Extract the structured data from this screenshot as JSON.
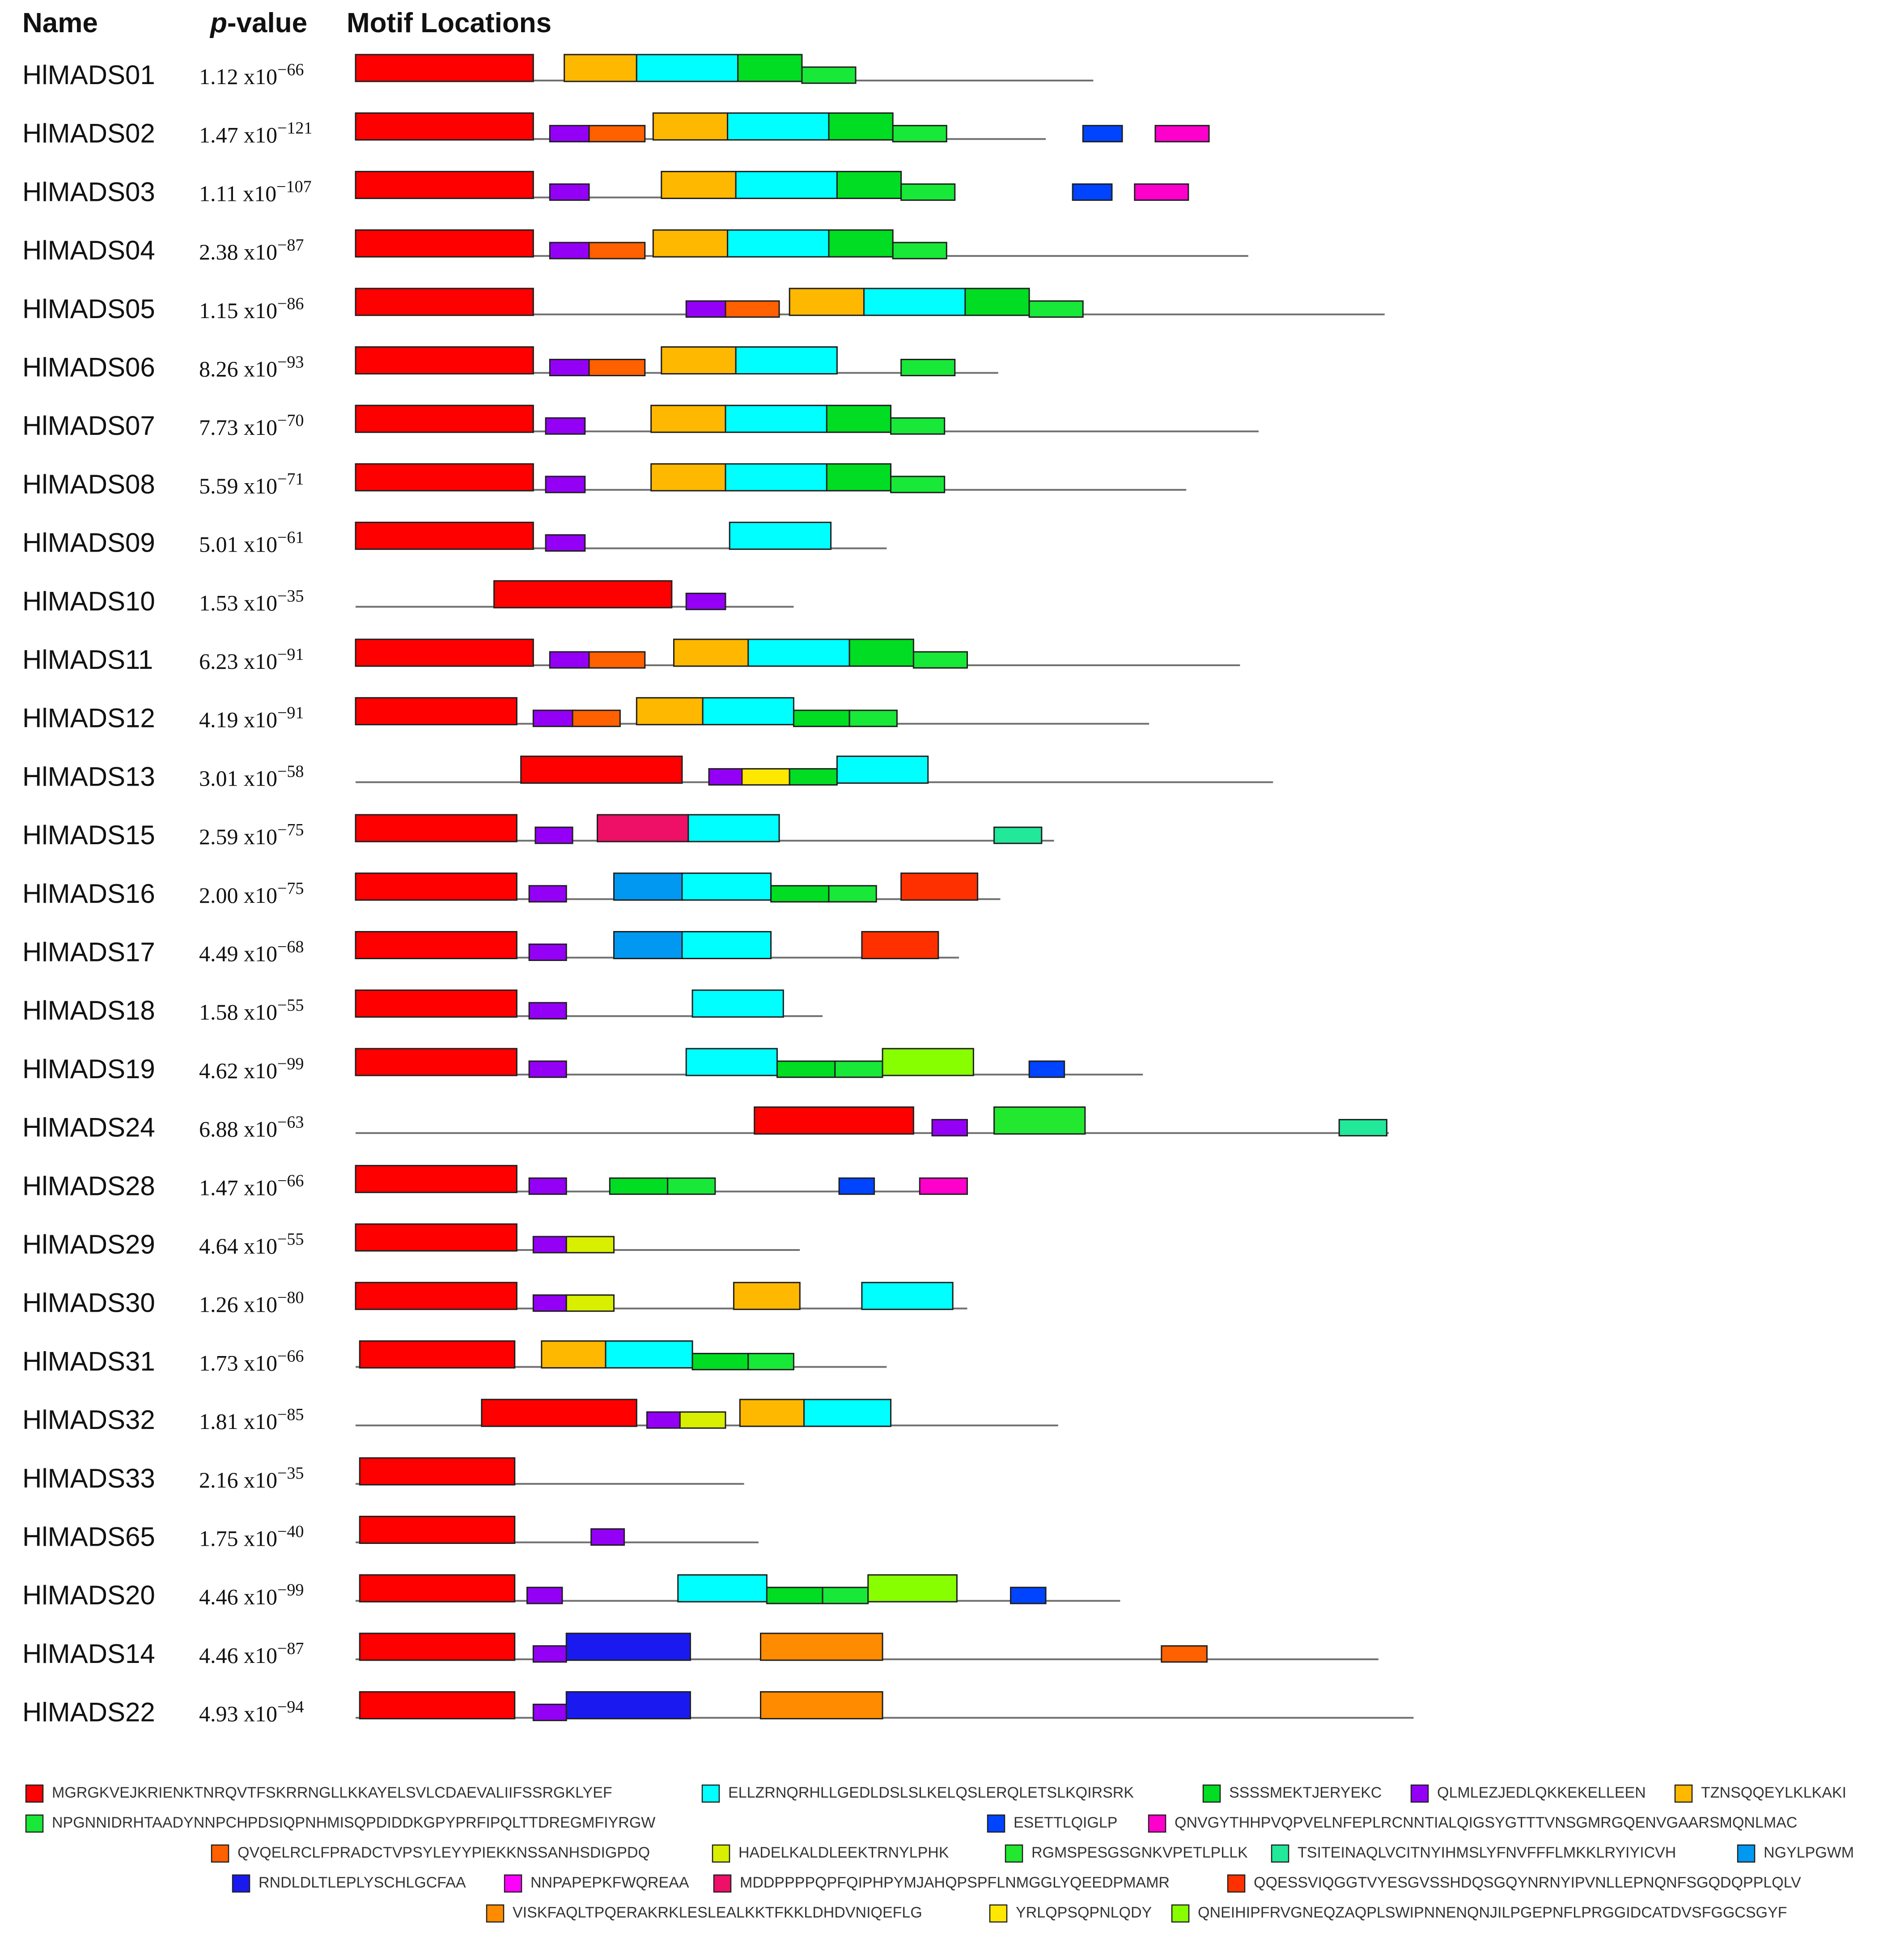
{
  "headers": {
    "name": "Name",
    "p_prefix": "p",
    "p_suffix": "-value",
    "motif": "Motif Locations"
  },
  "scale": {
    "aa_max": 500
  },
  "motifs": [
    {
      "id": 1,
      "color": "#ff0000",
      "seq": "MGRGKVEJKRIENKTNRQVTFSKRRNGLLKKAYELSVLCDAEVALIIFSSRGKLYEF"
    },
    {
      "id": 2,
      "color": "#00ffff",
      "seq": "ELLZRNQRHLLGEDLDSLSLKELQSLERQLETSLKQIRSRK"
    },
    {
      "id": 3,
      "color": "#00dd22",
      "seq": "SSSSMEKTJERYEKC"
    },
    {
      "id": 4,
      "color": "#9400f5",
      "seq": "QLMLEZJEDLQKKEKELLEEN"
    },
    {
      "id": 5,
      "color": "#ffb800",
      "seq": "TZNSQQEYLKLKAKI"
    },
    {
      "id": 6,
      "color": "#18e838",
      "seq": "NPGNNIDRHTAADYNNPCHPDSIQPNHMISQPDIDDKGPYPRFIPQLTTDREGMFIYRGW"
    },
    {
      "id": 7,
      "color": "#0044ff",
      "seq": "ESETTLQIGLP"
    },
    {
      "id": 8,
      "color": "#ff00cc",
      "seq": "QNVGYTHHPVQPVELNFEPLRCNNTIALQIGSYGTTTVNSGMRGQENVGAARSMQNLMAC"
    },
    {
      "id": 9,
      "color": "#ff6000",
      "seq": "QVQELRCLFPRADCTVPSYLEYYPIEKKNSSANHSDIGPDQ"
    },
    {
      "id": 10,
      "color": "#d8f000",
      "seq": "HADELKALDLEEKTRNYLPHK"
    },
    {
      "id": 11,
      "color": "#22e830",
      "seq": "RGMSPESGSGNKVPETLPLLK"
    },
    {
      "id": 12,
      "color": "#22e89a",
      "seq": "TSITEINAQLVCITNYIHMSLYFNVFFFLMKKLRYIYICVH"
    },
    {
      "id": 13,
      "color": "#0098f0",
      "seq": "NGYLPGWM"
    },
    {
      "id": 14,
      "color": "#1a1af0",
      "seq": "RNDLDLTLEPLYSCHLGCFAA"
    },
    {
      "id": 15,
      "color": "#ff00ff",
      "seq": "NNPAPEPKFWQREAA"
    },
    {
      "id": 16,
      "color": "#ee0f66",
      "seq": "MDDPPPPQPFQIPHPYMJAHQPSPFLNMGGLYQEEDPMAMR"
    },
    {
      "id": 17,
      "color": "#ff3000",
      "seq": "QQESSVIQGGTVYESGVSSHDQSGQYNRNYIPVNLLEPNQNFSGQDQPPLQLV"
    },
    {
      "id": 18,
      "color": "#ff8c00",
      "seq": "VISKFAQLTPQERAKRKLESLEALKKTFKKLDHDVNIQEFLG"
    },
    {
      "id": 19,
      "color": "#ffe800",
      "seq": "YRLQPSQPNLQDY"
    },
    {
      "id": 20,
      "color": "#88ff00",
      "seq": "QNEIHIPFRVGNEQZAQPLSWIPNNENQNJILPGEPNFLPRGGIDCATDVSFGGCSGYF"
    }
  ],
  "proteins": [
    {
      "name": "HlMADS01",
      "p": {
        "mant": "1.12",
        "exp": "−66"
      },
      "length": 357,
      "motifs": [
        {
          "m": 1,
          "s": 0,
          "e": 86
        },
        {
          "m": 5,
          "s": 101,
          "e": 136
        },
        {
          "m": 2,
          "s": 136,
          "e": 185
        },
        {
          "m": 3,
          "s": 185,
          "e": 216
        },
        {
          "m": 6,
          "s": 216,
          "e": 242
        }
      ]
    },
    {
      "name": "HlMADS02",
      "p": {
        "mant": "1.47",
        "exp": "−121"
      },
      "length": 334,
      "motifs": [
        {
          "m": 1,
          "s": 0,
          "e": 86
        },
        {
          "m": 4,
          "s": 94,
          "e": 113
        },
        {
          "m": 9,
          "s": 113,
          "e": 140
        },
        {
          "m": 5,
          "s": 144,
          "e": 180
        },
        {
          "m": 2,
          "s": 180,
          "e": 229
        },
        {
          "m": 3,
          "s": 229,
          "e": 260
        },
        {
          "m": 6,
          "s": 260,
          "e": 286
        },
        {
          "m": 7,
          "s": 352,
          "e": 371
        },
        {
          "m": 8,
          "s": 387,
          "e": 413
        }
      ]
    },
    {
      "name": "HlMADS03",
      "p": {
        "mant": "1.11",
        "exp": "−107"
      },
      "length": 200,
      "motifs": [
        {
          "m": 1,
          "s": 0,
          "e": 86
        },
        {
          "m": 4,
          "s": 94,
          "e": 113
        },
        {
          "m": 5,
          "s": 148,
          "e": 184
        },
        {
          "m": 2,
          "s": 184,
          "e": 233
        },
        {
          "m": 3,
          "s": 233,
          "e": 264
        },
        {
          "m": 6,
          "s": 264,
          "e": 290
        },
        {
          "m": 7,
          "s": 347,
          "e": 366
        },
        {
          "m": 8,
          "s": 377,
          "e": 403
        }
      ]
    },
    {
      "name": "HlMADS04",
      "p": {
        "mant": "2.38",
        "exp": "−87"
      },
      "length": 432,
      "motifs": [
        {
          "m": 1,
          "s": 0,
          "e": 86
        },
        {
          "m": 4,
          "s": 94,
          "e": 113
        },
        {
          "m": 9,
          "s": 113,
          "e": 140
        },
        {
          "m": 5,
          "s": 144,
          "e": 180
        },
        {
          "m": 2,
          "s": 180,
          "e": 229
        },
        {
          "m": 3,
          "s": 229,
          "e": 260
        },
        {
          "m": 6,
          "s": 260,
          "e": 286
        }
      ]
    },
    {
      "name": "HlMADS05",
      "p": {
        "mant": "1.15",
        "exp": "−86"
      },
      "length": 498,
      "motifs": [
        {
          "m": 1,
          "s": 0,
          "e": 86
        },
        {
          "m": 4,
          "s": 160,
          "e": 179
        },
        {
          "m": 9,
          "s": 179,
          "e": 205
        },
        {
          "m": 5,
          "s": 210,
          "e": 246
        },
        {
          "m": 2,
          "s": 246,
          "e": 295
        },
        {
          "m": 3,
          "s": 295,
          "e": 326
        },
        {
          "m": 6,
          "s": 326,
          "e": 352
        }
      ]
    },
    {
      "name": "HlMADS06",
      "p": {
        "mant": "8.26",
        "exp": "−93"
      },
      "length": 311,
      "motifs": [
        {
          "m": 1,
          "s": 0,
          "e": 86
        },
        {
          "m": 4,
          "s": 94,
          "e": 113
        },
        {
          "m": 9,
          "s": 113,
          "e": 140
        },
        {
          "m": 5,
          "s": 148,
          "e": 184
        },
        {
          "m": 2,
          "s": 184,
          "e": 233
        },
        {
          "m": 6,
          "s": 264,
          "e": 290
        }
      ]
    },
    {
      "name": "HlMADS07",
      "p": {
        "mant": "7.73",
        "exp": "−70"
      },
      "length": 437,
      "motifs": [
        {
          "m": 1,
          "s": 0,
          "e": 86
        },
        {
          "m": 4,
          "s": 92,
          "e": 111
        },
        {
          "m": 5,
          "s": 143,
          "e": 179
        },
        {
          "m": 2,
          "s": 179,
          "e": 228
        },
        {
          "m": 3,
          "s": 228,
          "e": 259
        },
        {
          "m": 6,
          "s": 259,
          "e": 285
        }
      ]
    },
    {
      "name": "HlMADS08",
      "p": {
        "mant": "5.59",
        "exp": "−71"
      },
      "length": 402,
      "motifs": [
        {
          "m": 1,
          "s": 0,
          "e": 86
        },
        {
          "m": 4,
          "s": 92,
          "e": 111
        },
        {
          "m": 5,
          "s": 143,
          "e": 179
        },
        {
          "m": 2,
          "s": 179,
          "e": 228
        },
        {
          "m": 3,
          "s": 228,
          "e": 259
        },
        {
          "m": 6,
          "s": 259,
          "e": 285
        }
      ]
    },
    {
      "name": "HlMADS09",
      "p": {
        "mant": "5.01",
        "exp": "−61"
      },
      "length": 257,
      "motifs": [
        {
          "m": 1,
          "s": 0,
          "e": 86
        },
        {
          "m": 4,
          "s": 92,
          "e": 111
        },
        {
          "m": 2,
          "s": 181,
          "e": 230
        }
      ]
    },
    {
      "name": "HlMADS10",
      "p": {
        "mant": "1.53",
        "exp": "−35"
      },
      "length": 212,
      "motifs": [
        {
          "m": 1,
          "s": 67,
          "e": 153
        },
        {
          "m": 4,
          "s": 160,
          "e": 179
        }
      ]
    },
    {
      "name": "HlMADS11",
      "p": {
        "mant": "6.23",
        "exp": "−91"
      },
      "length": 428,
      "motifs": [
        {
          "m": 1,
          "s": 0,
          "e": 86
        },
        {
          "m": 4,
          "s": 94,
          "e": 113
        },
        {
          "m": 9,
          "s": 113,
          "e": 140
        },
        {
          "m": 5,
          "s": 154,
          "e": 190
        },
        {
          "m": 2,
          "s": 190,
          "e": 239
        },
        {
          "m": 3,
          "s": 239,
          "e": 270
        },
        {
          "m": 6,
          "s": 270,
          "e": 296
        }
      ]
    },
    {
      "name": "HlMADS12",
      "p": {
        "mant": "4.19",
        "exp": "−91"
      },
      "length": 384,
      "motifs": [
        {
          "m": 1,
          "s": 0,
          "e": 78
        },
        {
          "m": 4,
          "s": 86,
          "e": 105
        },
        {
          "m": 9,
          "s": 105,
          "e": 128
        },
        {
          "m": 5,
          "s": 136,
          "e": 168
        },
        {
          "m": 2,
          "s": 168,
          "e": 212
        },
        {
          "m": 3,
          "s": 212,
          "e": 239
        },
        {
          "m": 6,
          "s": 239,
          "e": 262
        }
      ]
    },
    {
      "name": "HlMADS13",
      "p": {
        "mant": "3.01",
        "exp": "−58"
      },
      "length": 444,
      "motifs": [
        {
          "m": 1,
          "s": 80,
          "e": 158
        },
        {
          "m": 4,
          "s": 171,
          "e": 187
        },
        {
          "m": 19,
          "s": 187,
          "e": 210
        },
        {
          "m": 3,
          "s": 210,
          "e": 233
        },
        {
          "m": 2,
          "s": 233,
          "e": 277
        }
      ]
    },
    {
      "name": "HlMADS15",
      "p": {
        "mant": "2.59",
        "exp": "−75"
      },
      "length": 338,
      "motifs": [
        {
          "m": 1,
          "s": 0,
          "e": 78
        },
        {
          "m": 4,
          "s": 87,
          "e": 105
        },
        {
          "m": 16,
          "s": 117,
          "e": 161
        },
        {
          "m": 2,
          "s": 161,
          "e": 205
        },
        {
          "m": 12,
          "s": 309,
          "e": 332
        }
      ]
    },
    {
      "name": "HlMADS16",
      "p": {
        "mant": "2.00",
        "exp": "−75"
      },
      "length": 312,
      "motifs": [
        {
          "m": 1,
          "s": 0,
          "e": 78
        },
        {
          "m": 4,
          "s": 84,
          "e": 102
        },
        {
          "m": 13,
          "s": 125,
          "e": 158
        },
        {
          "m": 2,
          "s": 158,
          "e": 201
        },
        {
          "m": 3,
          "s": 201,
          "e": 229
        },
        {
          "m": 6,
          "s": 229,
          "e": 252
        },
        {
          "m": 17,
          "s": 264,
          "e": 301
        }
      ]
    },
    {
      "name": "HlMADS17",
      "p": {
        "mant": "4.49",
        "exp": "−68"
      },
      "length": 292,
      "motifs": [
        {
          "m": 1,
          "s": 0,
          "e": 78
        },
        {
          "m": 4,
          "s": 84,
          "e": 102
        },
        {
          "m": 13,
          "s": 125,
          "e": 158
        },
        {
          "m": 2,
          "s": 158,
          "e": 201
        },
        {
          "m": 17,
          "s": 245,
          "e": 282
        }
      ]
    },
    {
      "name": "HlMADS18",
      "p": {
        "mant": "1.58",
        "exp": "−55"
      },
      "length": 226,
      "motifs": [
        {
          "m": 1,
          "s": 0,
          "e": 78
        },
        {
          "m": 4,
          "s": 84,
          "e": 102
        },
        {
          "m": 2,
          "s": 163,
          "e": 207
        }
      ]
    },
    {
      "name": "HlMADS19",
      "p": {
        "mant": "4.62",
        "exp": "−99"
      },
      "length": 381,
      "motifs": [
        {
          "m": 1,
          "s": 0,
          "e": 78
        },
        {
          "m": 4,
          "s": 84,
          "e": 102
        },
        {
          "m": 2,
          "s": 160,
          "e": 204
        },
        {
          "m": 3,
          "s": 204,
          "e": 232
        },
        {
          "m": 6,
          "s": 232,
          "e": 255
        },
        {
          "m": 20,
          "s": 255,
          "e": 299
        },
        {
          "m": 7,
          "s": 326,
          "e": 343
        }
      ]
    },
    {
      "name": "HlMADS24",
      "p": {
        "mant": "6.88",
        "exp": "−63"
      },
      "length": 500,
      "motifs": [
        {
          "m": 1,
          "s": 193,
          "e": 270
        },
        {
          "m": 4,
          "s": 279,
          "e": 296
        },
        {
          "m": 11,
          "s": 309,
          "e": 353
        },
        {
          "m": 12,
          "s": 476,
          "e": 499
        }
      ]
    },
    {
      "name": "HlMADS28",
      "p": {
        "mant": "1.47",
        "exp": "−66"
      },
      "length": 280,
      "motifs": [
        {
          "m": 1,
          "s": 0,
          "e": 78
        },
        {
          "m": 4,
          "s": 84,
          "e": 102
        },
        {
          "m": 3,
          "s": 123,
          "e": 151
        },
        {
          "m": 6,
          "s": 151,
          "e": 174
        },
        {
          "m": 7,
          "s": 234,
          "e": 251
        },
        {
          "m": 8,
          "s": 273,
          "e": 296
        }
      ]
    },
    {
      "name": "HlMADS29",
      "p": {
        "mant": "4.64",
        "exp": "−55"
      },
      "length": 215,
      "motifs": [
        {
          "m": 1,
          "s": 0,
          "e": 78
        },
        {
          "m": 4,
          "s": 86,
          "e": 102
        },
        {
          "m": 10,
          "s": 102,
          "e": 125
        }
      ]
    },
    {
      "name": "HlMADS30",
      "p": {
        "mant": "1.26",
        "exp": "−80"
      },
      "length": 296,
      "motifs": [
        {
          "m": 1,
          "s": 0,
          "e": 78
        },
        {
          "m": 4,
          "s": 86,
          "e": 102
        },
        {
          "m": 10,
          "s": 102,
          "e": 125
        },
        {
          "m": 5,
          "s": 183,
          "e": 215
        },
        {
          "m": 2,
          "s": 245,
          "e": 289
        }
      ]
    },
    {
      "name": "HlMADS31",
      "p": {
        "mant": "1.73",
        "exp": "−66"
      },
      "length": 257,
      "motifs": [
        {
          "m": 1,
          "s": 2,
          "e": 77
        },
        {
          "m": 5,
          "s": 90,
          "e": 121
        },
        {
          "m": 2,
          "s": 121,
          "e": 163
        },
        {
          "m": 3,
          "s": 163,
          "e": 190
        },
        {
          "m": 6,
          "s": 190,
          "e": 212
        }
      ]
    },
    {
      "name": "HlMADS32",
      "p": {
        "mant": "1.81",
        "exp": "−85"
      },
      "length": 340,
      "motifs": [
        {
          "m": 1,
          "s": 61,
          "e": 136
        },
        {
          "m": 4,
          "s": 141,
          "e": 157
        },
        {
          "m": 10,
          "s": 157,
          "e": 179
        },
        {
          "m": 5,
          "s": 186,
          "e": 217
        },
        {
          "m": 2,
          "s": 217,
          "e": 259
        }
      ]
    },
    {
      "name": "HlMADS33",
      "p": {
        "mant": "2.16",
        "exp": "−35"
      },
      "length": 188,
      "motifs": [
        {
          "m": 1,
          "s": 2,
          "e": 77
        }
      ]
    },
    {
      "name": "HlMADS65",
      "p": {
        "mant": "1.75",
        "exp": "−40"
      },
      "length": 195,
      "motifs": [
        {
          "m": 1,
          "s": 2,
          "e": 77
        },
        {
          "m": 4,
          "s": 114,
          "e": 130
        }
      ]
    },
    {
      "name": "HlMADS20",
      "p": {
        "mant": "4.46",
        "exp": "−99"
      },
      "length": 370,
      "motifs": [
        {
          "m": 1,
          "s": 2,
          "e": 77
        },
        {
          "m": 4,
          "s": 83,
          "e": 100
        },
        {
          "m": 2,
          "s": 156,
          "e": 199
        },
        {
          "m": 3,
          "s": 199,
          "e": 226
        },
        {
          "m": 6,
          "s": 226,
          "e": 248
        },
        {
          "m": 20,
          "s": 248,
          "e": 291
        },
        {
          "m": 7,
          "s": 317,
          "e": 334
        }
      ]
    },
    {
      "name": "HlMADS14",
      "p": {
        "mant": "4.46",
        "exp": "−87"
      },
      "length": 495,
      "motifs": [
        {
          "m": 1,
          "s": 2,
          "e": 77
        },
        {
          "m": 4,
          "s": 86,
          "e": 102
        },
        {
          "m": 14,
          "s": 102,
          "e": 162
        },
        {
          "m": 18,
          "s": 196,
          "e": 255
        },
        {
          "m": 9,
          "s": 390,
          "e": 412
        }
      ]
    },
    {
      "name": "HlMADS22",
      "p": {
        "mant": "4.93",
        "exp": "−94"
      },
      "length": 512,
      "motifs": [
        {
          "m": 1,
          "s": 2,
          "e": 77
        },
        {
          "m": 4,
          "s": 86,
          "e": 102
        },
        {
          "m": 14,
          "s": 102,
          "e": 162
        },
        {
          "m": 18,
          "s": 196,
          "e": 255
        }
      ]
    }
  ]
}
